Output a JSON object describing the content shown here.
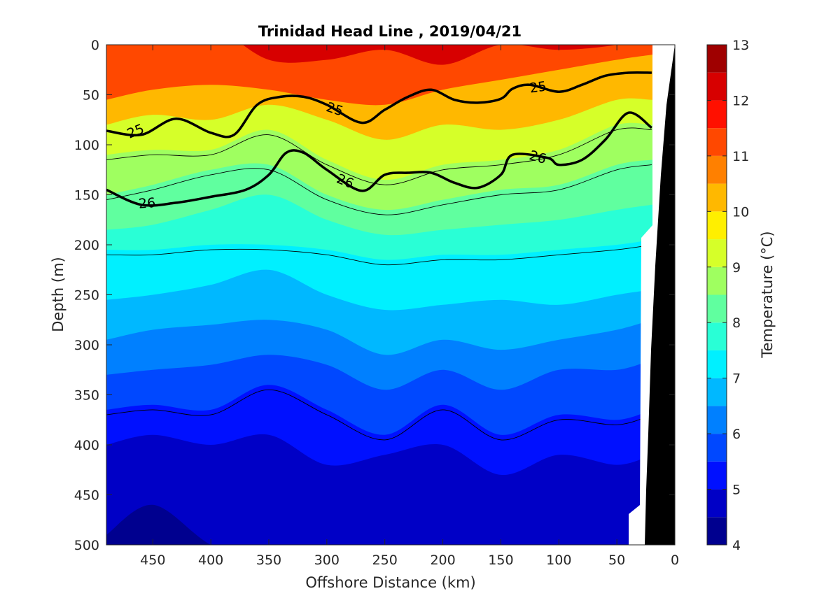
{
  "chart_data": {
    "type": "heatmap",
    "title": "Trinidad Head Line , 2019/04/21",
    "xlabel": "Offshore Distance (km)",
    "ylabel": "Depth (m)",
    "xlim": [
      490,
      0
    ],
    "ylim": [
      0,
      500
    ],
    "x_reversed": true,
    "y_reversed": true,
    "x_ticks": [
      "450",
      "400",
      "350",
      "300",
      "250",
      "200",
      "150",
      "100",
      "50",
      "0"
    ],
    "y_ticks": [
      "0",
      "50",
      "100",
      "150",
      "200",
      "250",
      "300",
      "350",
      "400",
      "450",
      "500"
    ],
    "grid": false,
    "colorbar": {
      "label": "Temperature (°C)",
      "range": [
        4,
        13
      ],
      "levels": [
        4,
        4.5,
        5,
        5.5,
        6,
        6.5,
        7,
        7.5,
        8,
        8.5,
        9,
        9.5,
        10,
        10.5,
        11,
        11.5,
        12,
        12.5,
        13
      ],
      "tick_labels": [
        "4",
        "5",
        "6",
        "7",
        "8",
        "9",
        "10",
        "11",
        "12",
        "13"
      ],
      "colors": [
        "#00008f",
        "#0000c6",
        "#0010ff",
        "#0048ff",
        "#0080ff",
        "#00b8ff",
        "#00f0ff",
        "#29ffd6",
        "#60ff9f",
        "#9fff60",
        "#d6ff29",
        "#ffef00",
        "#ffb800",
        "#ff8000",
        "#ff4800",
        "#ff1000",
        "#d70000",
        "#9f0000"
      ]
    },
    "temperature_stations": {
      "x_km": [
        490,
        450,
        400,
        350,
        300,
        250,
        200,
        150,
        100,
        50,
        20
      ],
      "isotherm_depth_m": [
        {
          "temp": 12,
          "depth": [
            -30,
            -25,
            -20,
            15,
            15,
            5,
            20,
            0,
            5,
            0,
            -10
          ]
        },
        {
          "temp": 11,
          "depth": [
            55,
            45,
            40,
            45,
            55,
            60,
            45,
            35,
            25,
            15,
            10
          ]
        },
        {
          "temp": 10,
          "depth": [
            80,
            70,
            75,
            60,
            75,
            95,
            80,
            85,
            75,
            55,
            55
          ]
        },
        {
          "temp": 9,
          "depth": [
            110,
            105,
            105,
            85,
            115,
            135,
            120,
            115,
            105,
            80,
            80
          ]
        },
        {
          "temp": 8.5,
          "depth": [
            150,
            140,
            125,
            120,
            150,
            165,
            155,
            145,
            140,
            120,
            115
          ]
        },
        {
          "temp": 8,
          "depth": [
            185,
            180,
            165,
            150,
            175,
            190,
            185,
            180,
            175,
            165,
            160
          ]
        },
        {
          "temp": 7.5,
          "depth": [
            205,
            205,
            200,
            200,
            205,
            215,
            210,
            210,
            205,
            200,
            195
          ]
        },
        {
          "temp": 7,
          "depth": [
            255,
            250,
            240,
            225,
            250,
            265,
            260,
            255,
            260,
            250,
            245
          ]
        },
        {
          "temp": 6.5,
          "depth": [
            295,
            285,
            280,
            275,
            285,
            310,
            295,
            305,
            295,
            285,
            275
          ]
        },
        {
          "temp": 6,
          "depth": [
            330,
            325,
            320,
            310,
            320,
            345,
            325,
            345,
            325,
            325,
            315
          ]
        },
        {
          "temp": 5.5,
          "depth": [
            365,
            360,
            365,
            340,
            365,
            390,
            360,
            390,
            370,
            375,
            365
          ]
        },
        {
          "temp": 5,
          "depth": [
            400,
            390,
            400,
            390,
            420,
            410,
            400,
            430,
            410,
            420,
            410
          ]
        },
        {
          "temp": 4.5,
          "depth": [
            490,
            460,
            500,
            520,
            520,
            520,
            520,
            520,
            520,
            520,
            520
          ]
        }
      ]
    },
    "density_contours": [
      {
        "label": "25",
        "labeled": true,
        "x_km": [
          490,
          460,
          430,
          400,
          380,
          360,
          340,
          320,
          300,
          270,
          250,
          230,
          210,
          190,
          170,
          150,
          140,
          125,
          100,
          80,
          60,
          40,
          20
        ],
        "depth": [
          86,
          90,
          74,
          88,
          90,
          60,
          52,
          52,
          60,
          78,
          65,
          52,
          45,
          55,
          58,
          54,
          44,
          40,
          47,
          40,
          31,
          28,
          28
        ]
      },
      {
        "label": "26",
        "labeled": true,
        "x_km": [
          490,
          460,
          430,
          400,
          370,
          350,
          335,
          320,
          300,
          270,
          250,
          230,
          210,
          190,
          170,
          150,
          140,
          110,
          100,
          80,
          60,
          40,
          20
        ],
        "depth": [
          145,
          160,
          158,
          152,
          145,
          130,
          108,
          108,
          125,
          146,
          130,
          128,
          128,
          138,
          143,
          130,
          110,
          113,
          120,
          115,
          95,
          68,
          83
        ]
      }
    ],
    "annotations": [
      "25",
      "25",
      "25",
      "26",
      "26",
      "26"
    ],
    "coastline_mask": "black"
  }
}
